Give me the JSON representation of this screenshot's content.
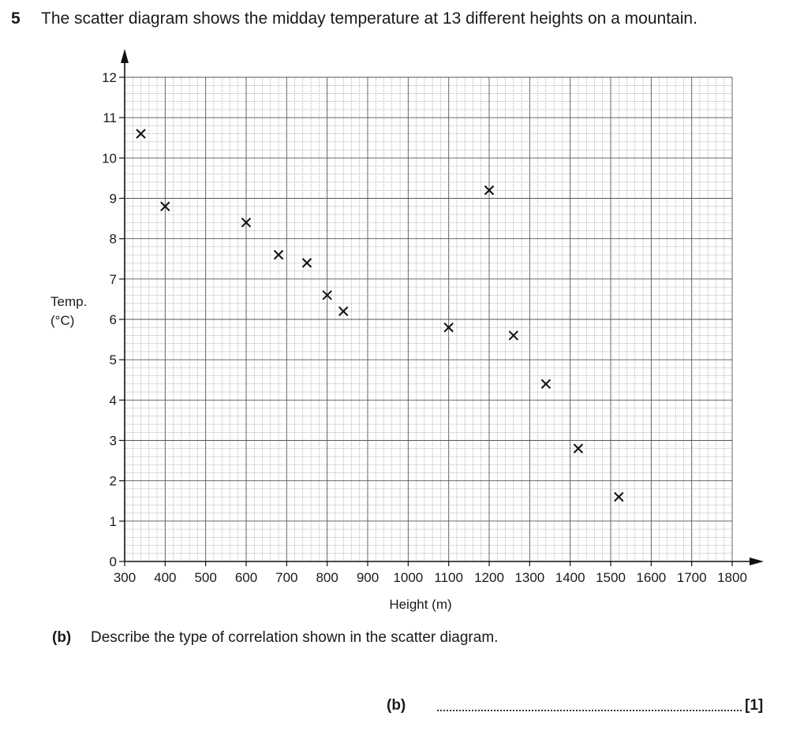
{
  "question": {
    "number": "5",
    "text": "The scatter diagram shows the midday temperature at 13 different heights on a mountain."
  },
  "chart_data": {
    "type": "scatter",
    "xlabel": "Height (m)",
    "ylabel_line1": "Temp.",
    "ylabel_line2": "(°C)",
    "xlim": [
      300,
      1800
    ],
    "ylim": [
      0,
      12
    ],
    "xticks": [
      300,
      400,
      500,
      600,
      700,
      800,
      900,
      1000,
      1100,
      1200,
      1300,
      1400,
      1500,
      1600,
      1700,
      1800
    ],
    "yticks": [
      0,
      1,
      2,
      3,
      4,
      5,
      6,
      7,
      8,
      9,
      10,
      11,
      12
    ],
    "grid": true,
    "marker": "×",
    "points": [
      {
        "x": 340,
        "y": 10.6
      },
      {
        "x": 400,
        "y": 8.8
      },
      {
        "x": 600,
        "y": 8.4
      },
      {
        "x": 680,
        "y": 7.6
      },
      {
        "x": 750,
        "y": 7.4
      },
      {
        "x": 800,
        "y": 6.6
      },
      {
        "x": 840,
        "y": 6.2
      },
      {
        "x": 1100,
        "y": 5.8
      },
      {
        "x": 1200,
        "y": 9.2
      },
      {
        "x": 1260,
        "y": 5.6
      },
      {
        "x": 1340,
        "y": 4.4
      },
      {
        "x": 1420,
        "y": 2.8
      },
      {
        "x": 1520,
        "y": 1.6
      }
    ]
  },
  "part_b": {
    "label": "(b)",
    "text": "Describe the type of correlation shown in the scatter diagram.",
    "answer_label": "(b)",
    "marks": "[1]"
  }
}
